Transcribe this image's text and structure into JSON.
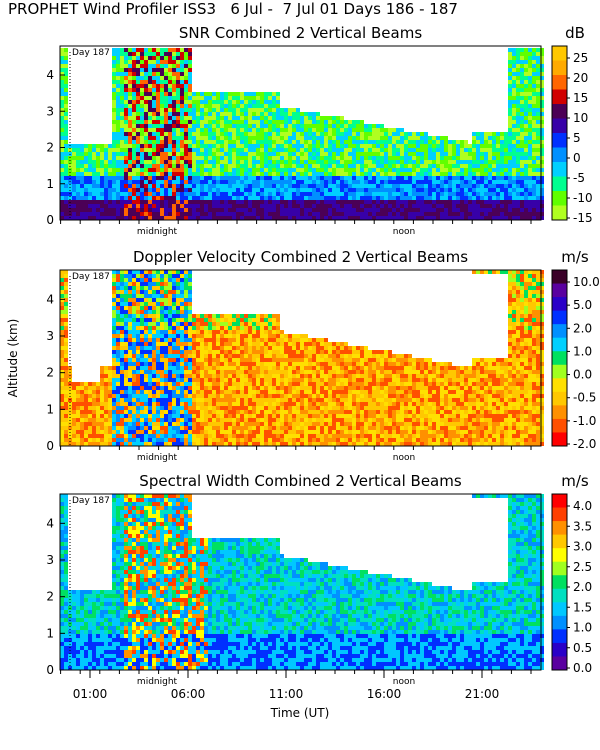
{
  "header": {
    "title": "PROPHET Wind Profiler ISS3   6 Jul -  7 Jul 01 Days 186 - 187"
  },
  "axes": {
    "ylabel": "Altitude (km)",
    "xlabel": "Time (UT)",
    "day_marker": "Day 187",
    "midnight_label": "midnight",
    "noon_label": "noon",
    "x_ticks": [
      "01:00",
      "06:00",
      "11:00",
      "16:00",
      "21:00"
    ],
    "y_ticks": [
      "0",
      "1",
      "2",
      "3",
      "4"
    ]
  },
  "chart_data": [
    {
      "type": "heatmap",
      "title": "SNR Combined 2 Vertical Beams",
      "unit": "dB",
      "ylim": [
        0,
        4.8
      ],
      "colorbar": {
        "labels": [
          "25",
          "20",
          "15",
          "10",
          "5",
          "0",
          "-5",
          "-10",
          "-15"
        ],
        "colors": [
          "#ffc800",
          "#ffaa00",
          "#ff6600",
          "#d10000",
          "#4b0056",
          "#3700a8",
          "#0030ff",
          "#0090ff",
          "#00d0ff",
          "#00ff90",
          "#60ff00",
          "#b0ff20"
        ]
      }
    },
    {
      "type": "heatmap",
      "title": "Doppler Velocity Combined 2 Vertical Beams",
      "unit": "m/s",
      "ylim": [
        0,
        4.8
      ],
      "colorbar": {
        "labels": [
          "10.0",
          "5.0",
          "2.0",
          "1.0",
          "0.0",
          "-0.5",
          "-1.0",
          "-2.0"
        ],
        "colors": [
          "#3a0028",
          "#5a00a0",
          "#2a00c8",
          "#0030ff",
          "#0090ff",
          "#00d0ff",
          "#00e060",
          "#a0ff20",
          "#ffe000",
          "#ffc800",
          "#ff9000",
          "#ff5000",
          "#ff0000"
        ]
      }
    },
    {
      "type": "heatmap",
      "title": "Spectral Width Combined 2 Vertical Beams",
      "unit": "m/s",
      "ylim": [
        0,
        4.8
      ],
      "colorbar": {
        "labels": [
          "4.0",
          "3.5",
          "3.0",
          "2.5",
          "2.0",
          "1.5",
          "1.0",
          "0.5",
          "0.0"
        ],
        "colors": [
          "#ff0000",
          "#ff4000",
          "#ff9000",
          "#ffc800",
          "#ffff00",
          "#a0ff20",
          "#00e060",
          "#00e0c0",
          "#00c8ff",
          "#0090ff",
          "#0030ff",
          "#2a00c8",
          "#5a00a0"
        ]
      }
    }
  ]
}
